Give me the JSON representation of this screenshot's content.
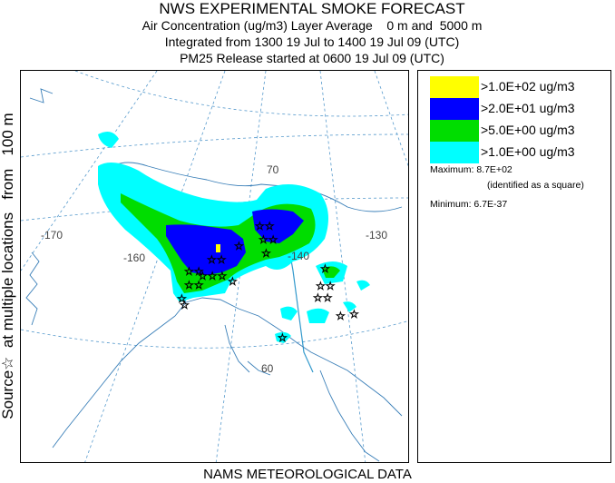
{
  "title": {
    "line1": "NWS EXPERIMENTAL SMOKE FORECAST",
    "line2": "Air Concentration (ug/m3) Layer Average    0 m and  5000 m",
    "line3": "Integrated from 1300 19 Jul to 1400 19 Jul 09 (UTC)",
    "line4": "PM25 Release started at 0600 19 Jul 09 (UTC)"
  },
  "side_label": "Source☆  at multiple locations   from   100 m",
  "footer": "NAMS METEOROLOGICAL DATA",
  "map": {
    "grid_labels": {
      "lat70": "70",
      "lat60": "60",
      "lon170": "-170",
      "lon160": "-160",
      "lon140": "-140",
      "lon130": "-130"
    },
    "colors": {
      "level1": "#ffff00",
      "level2": "#0000ff",
      "level3": "#00dd00",
      "level4": "#00ffff",
      "coast": "#000000",
      "graticule": "#5599cc",
      "border": "#3399cc"
    }
  },
  "legend": {
    "items": [
      {
        "label": ">1.0E+02 ug/m3",
        "color": "#ffff00"
      },
      {
        "label": ">2.0E+01 ug/m3",
        "color": "#0000ff"
      },
      {
        "label": ">5.0E+00 ug/m3",
        "color": "#00dd00"
      },
      {
        "label": ">1.0E+00 ug/m3",
        "color": "#00ffff"
      }
    ],
    "maximum": "Maximum: 8.7E+02",
    "maximum_note": "(identified as a square)",
    "minimum": "Minimum: 6.7E-37"
  }
}
